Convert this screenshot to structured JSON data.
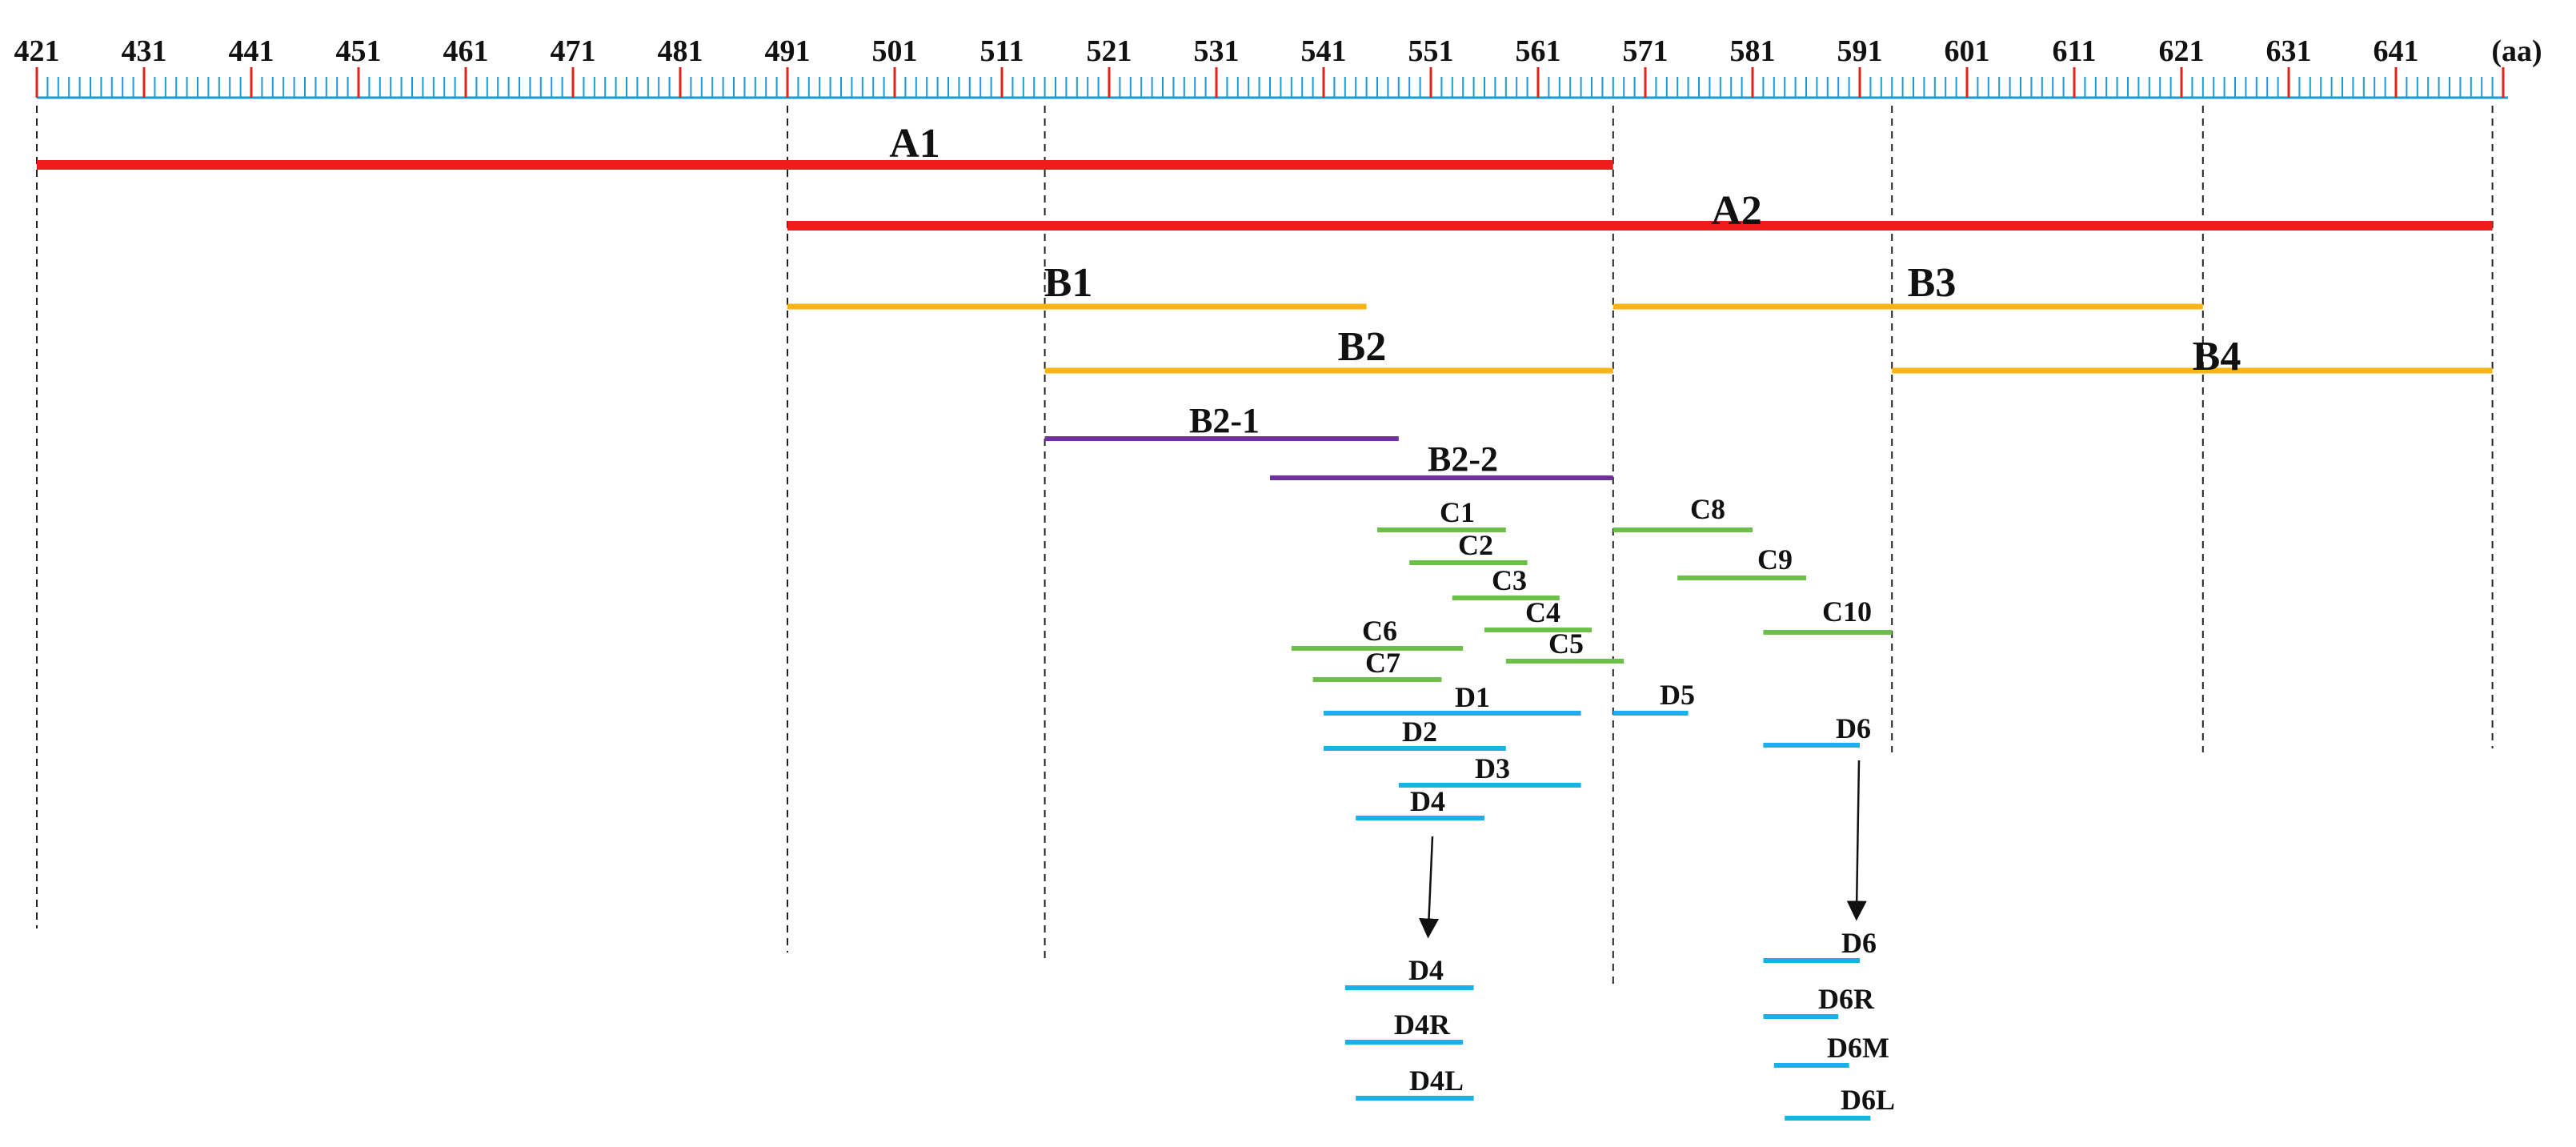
{
  "ruler": {
    "start": 421,
    "end": 651,
    "labels": [
      "421",
      "431",
      "441",
      "451",
      "461",
      "471",
      "481",
      "491",
      "501",
      "511",
      "521",
      "531",
      "541",
      "551",
      "561",
      "571",
      "581",
      "591",
      "601",
      "611",
      "621",
      "631",
      "641"
    ],
    "label_values": [
      421,
      431,
      441,
      451,
      461,
      471,
      481,
      491,
      501,
      511,
      521,
      531,
      541,
      551,
      561,
      571,
      581,
      591,
      601,
      611,
      621,
      631,
      641
    ],
    "unit_label": "(aa)",
    "tick_color": "#1a9ad6",
    "major_tick_color": "#e2231a"
  },
  "colors": {
    "A": "#ee1c1c",
    "B": "#f7b511",
    "B2sub": "#7030a0",
    "C": "#6cc04a",
    "D": "#1ab0e8",
    "guide": "#222222"
  },
  "segments": [
    {
      "id": "A1",
      "label": "A1",
      "group": "A",
      "start": 421,
      "end": 568
    },
    {
      "id": "A2",
      "label": "A2",
      "group": "A",
      "start": 491,
      "end": 650
    },
    {
      "id": "B1",
      "label": "B1",
      "group": "B",
      "start": 491,
      "end": 545
    },
    {
      "id": "B2",
      "label": "B2",
      "group": "B",
      "start": 515,
      "end": 568
    },
    {
      "id": "B3",
      "label": "B3",
      "group": "B",
      "start": 568,
      "end": 623
    },
    {
      "id": "B4",
      "label": "B4",
      "group": "B",
      "start": 594,
      "end": 650
    },
    {
      "id": "B2-1",
      "label": "B2-1",
      "group": "B2sub",
      "start": 515,
      "end": 548
    },
    {
      "id": "B2-2",
      "label": "B2-2",
      "group": "B2sub",
      "start": 536,
      "end": 568
    },
    {
      "id": "C1",
      "label": "C1",
      "group": "C",
      "start": 546,
      "end": 558
    },
    {
      "id": "C2",
      "label": "C2",
      "group": "C",
      "start": 549,
      "end": 560
    },
    {
      "id": "C3",
      "label": "C3",
      "group": "C",
      "start": 553,
      "end": 563
    },
    {
      "id": "C4",
      "label": "C4",
      "group": "C",
      "start": 556,
      "end": 566
    },
    {
      "id": "C5",
      "label": "C5",
      "group": "C",
      "start": 558,
      "end": 569
    },
    {
      "id": "C6",
      "label": "C6",
      "group": "C",
      "start": 538,
      "end": 554
    },
    {
      "id": "C7",
      "label": "C7",
      "group": "C",
      "start": 540,
      "end": 552
    },
    {
      "id": "C8",
      "label": "C8",
      "group": "C",
      "start": 568,
      "end": 581
    },
    {
      "id": "C9",
      "label": "C9",
      "group": "C",
      "start": 574,
      "end": 586
    },
    {
      "id": "C10",
      "label": "C10",
      "group": "C",
      "start": 582,
      "end": 594
    },
    {
      "id": "D1",
      "label": "D1",
      "group": "D",
      "start": 541,
      "end": 565
    },
    {
      "id": "D2",
      "label": "D2",
      "group": "D",
      "start": 541,
      "end": 558
    },
    {
      "id": "D3",
      "label": "D3",
      "group": "D",
      "start": 548,
      "end": 565
    },
    {
      "id": "D4",
      "label": "D4",
      "group": "D",
      "start": 544,
      "end": 556
    },
    {
      "id": "D5",
      "label": "D5",
      "group": "D",
      "start": 568,
      "end": 575
    },
    {
      "id": "D6",
      "label": "D6",
      "group": "D",
      "start": 582,
      "end": 591
    },
    {
      "id": "D4-final",
      "label": "D4",
      "group": "D",
      "start": 543,
      "end": 555
    },
    {
      "id": "D4R",
      "label": "D4R",
      "group": "D",
      "start": 543,
      "end": 554
    },
    {
      "id": "D4L",
      "label": "D4L",
      "group": "D",
      "start": 544,
      "end": 555
    },
    {
      "id": "D6-final",
      "label": "D6",
      "group": "D",
      "start": 582,
      "end": 591
    },
    {
      "id": "D6R",
      "label": "D6R",
      "group": "D",
      "start": 582,
      "end": 589
    },
    {
      "id": "D6M",
      "label": "D6M",
      "group": "D",
      "start": 583,
      "end": 590
    },
    {
      "id": "D6L",
      "label": "D6L",
      "group": "D",
      "start": 584,
      "end": 592
    }
  ],
  "guides": [
    421,
    491,
    515,
    568,
    594,
    623,
    650
  ],
  "arrows": [
    {
      "from": "D4",
      "to": "D4-final"
    },
    {
      "from": "D6",
      "to": "D6-final"
    }
  ]
}
